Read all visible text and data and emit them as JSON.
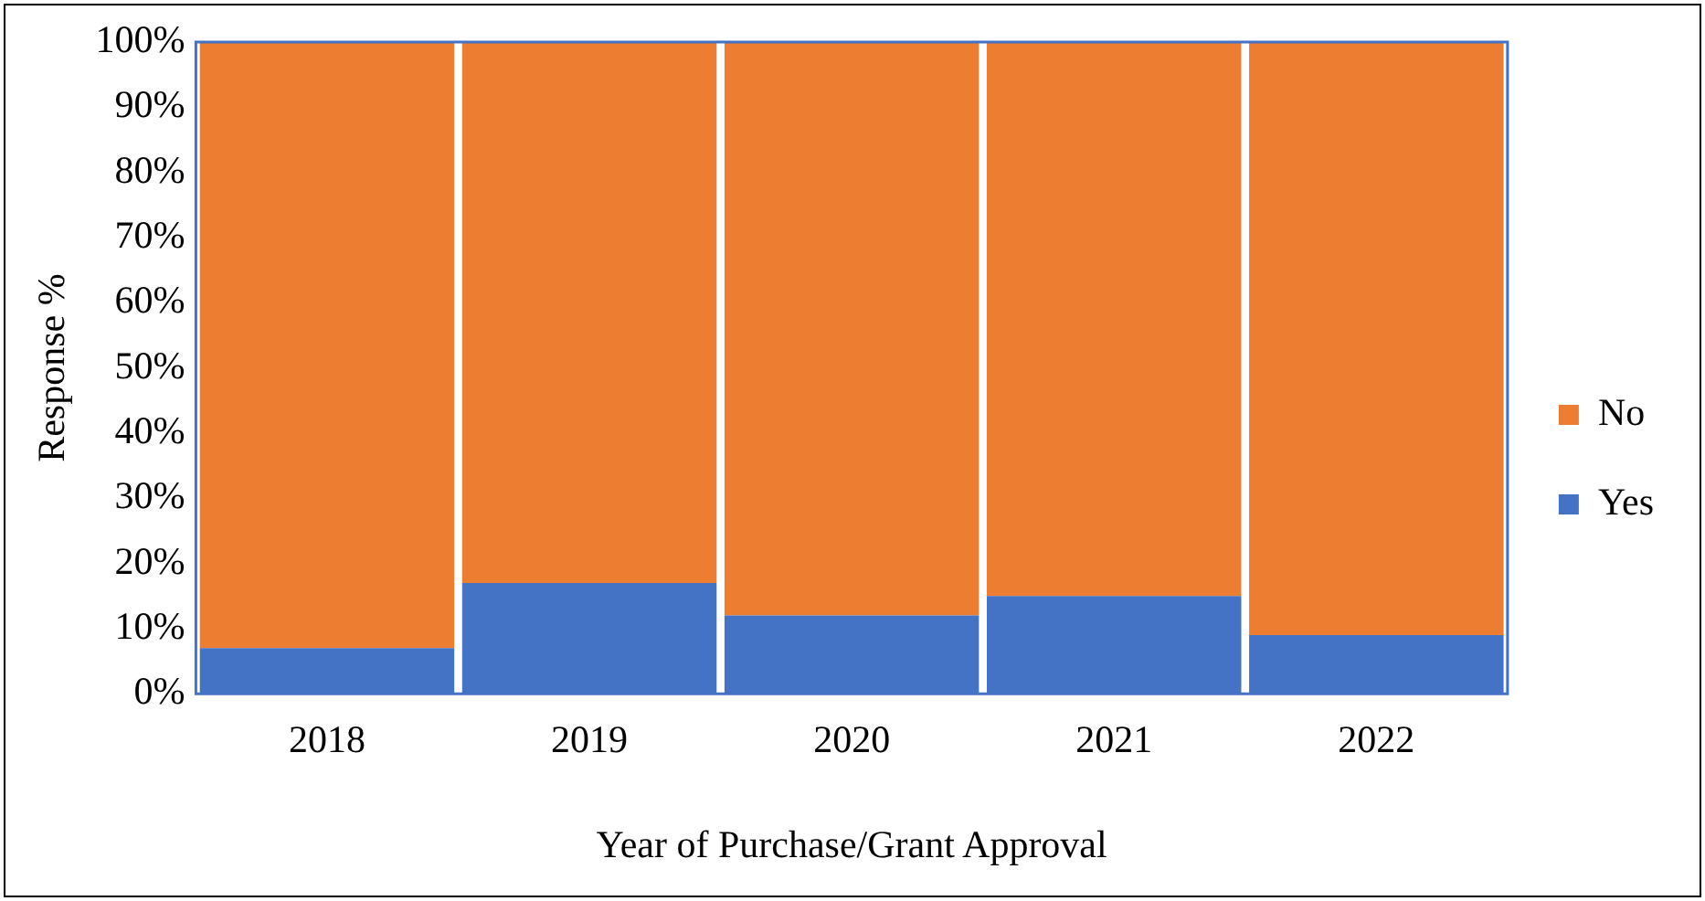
{
  "chart_data": {
    "type": "bar",
    "stacked": true,
    "xlabel": "Year of Purchase/Grant Approval",
    "ylabel": "Response %",
    "categories": [
      "2018",
      "2019",
      "2020",
      "2021",
      "2022"
    ],
    "series": [
      {
        "name": "Yes",
        "color": "#4472c4",
        "values": [
          7,
          17,
          12,
          15,
          9
        ]
      },
      {
        "name": "No",
        "color": "#ed7d31",
        "values": [
          93,
          83,
          88,
          85,
          91
        ]
      }
    ],
    "ylim": [
      0,
      100
    ],
    "yticks": [
      {
        "value": 0,
        "label": "0%"
      },
      {
        "value": 10,
        "label": "10%"
      },
      {
        "value": 20,
        "label": "20%"
      },
      {
        "value": 30,
        "label": "30%"
      },
      {
        "value": 40,
        "label": "40%"
      },
      {
        "value": 50,
        "label": "50%"
      },
      {
        "value": 60,
        "label": "60%"
      },
      {
        "value": 70,
        "label": "70%"
      },
      {
        "value": 80,
        "label": "80%"
      },
      {
        "value": 90,
        "label": "90%"
      },
      {
        "value": 100,
        "label": "100%"
      }
    ],
    "grid": false,
    "legend": "right"
  }
}
